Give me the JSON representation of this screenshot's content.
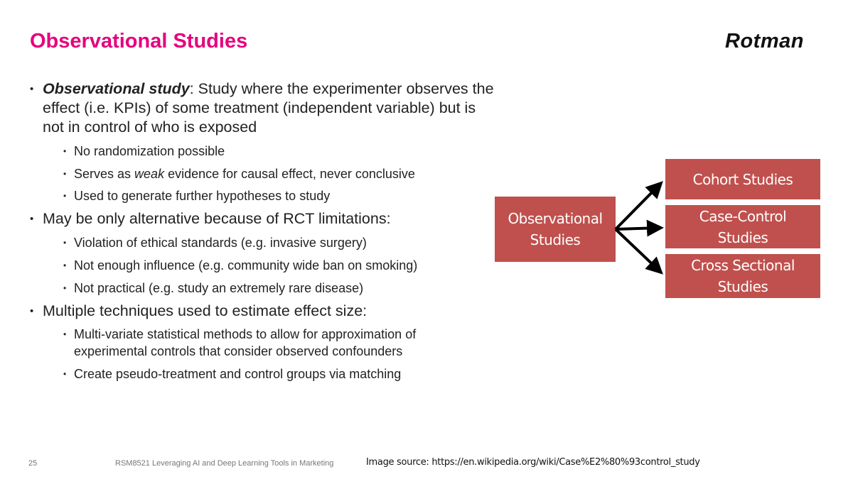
{
  "title": "Observational Studies",
  "logo": "Rotman",
  "bullets": {
    "b1_term": "Observational study",
    "b1_rest": ": Study where the experimenter observes the effect (i.e. KPIs) of some treatment (independent variable) but is not in control of who is exposed",
    "b1_s1": "No randomization possible",
    "b1_s2_a": "Serves as ",
    "b1_s2_em": "weak",
    "b1_s2_b": " evidence for causal effect, never conclusive",
    "b1_s3": "Used to generate further hypotheses to study",
    "b2": "May be only alternative because of RCT limitations:",
    "b2_s1": "Violation of ethical standards (e.g. invasive surgery)",
    "b2_s2": "Not enough influence (e.g. community wide ban on smoking)",
    "b2_s3": "Not practical (e.g. study an extremely rare disease)",
    "b3": "Multiple techniques used to estimate effect size:",
    "b3_s1": "Multi-variate statistical methods to allow for approximation of experimental controls that consider observed confounders",
    "b3_s2": "Create pseudo-treatment and control groups via matching"
  },
  "diagram": {
    "root_l1": "Observational",
    "root_l2": "Studies",
    "cohort": "Cohort Studies",
    "case_l1": "Case-Control",
    "case_l2": "Studies",
    "cross_l1": "Cross Sectional",
    "cross_l2": "Studies",
    "box_color": "#c0504d"
  },
  "footer": {
    "page": "25",
    "course": "RSM8521 Leveraging AI and Deep Learning Tools in Marketing",
    "source": "Image source: https://en.wikipedia.org/wiki/Case%E2%80%93control_study"
  }
}
